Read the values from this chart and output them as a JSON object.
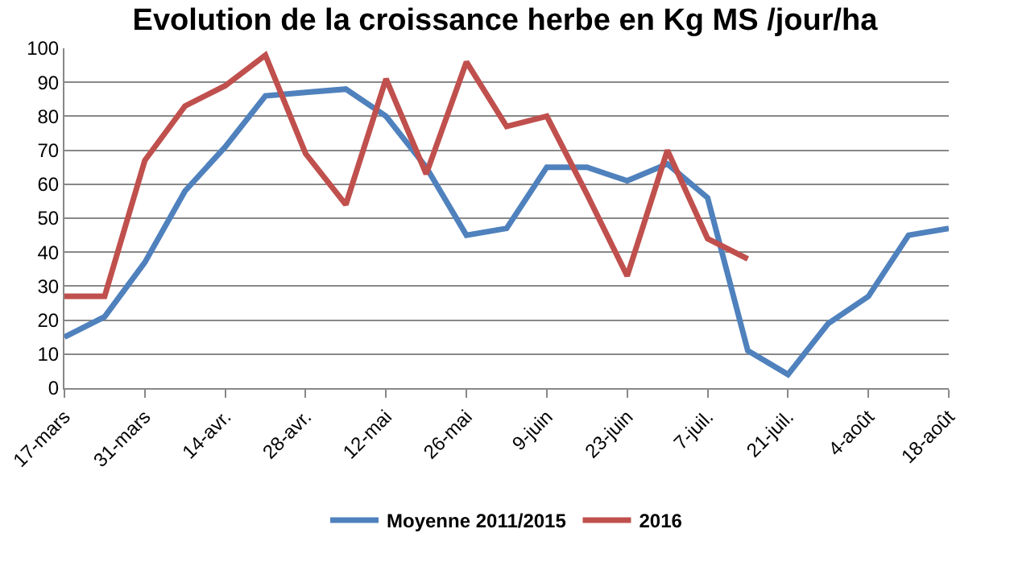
{
  "chart_data": {
    "type": "line",
    "title": "Evolution de la croissance herbe en Kg MS /jour/ha",
    "categories": [
      "17-mars",
      null,
      "31-mars",
      null,
      "14-avr.",
      null,
      "28-avr.",
      null,
      "12-mai",
      null,
      "26-mai",
      null,
      "9-juin",
      null,
      "23-juin",
      null,
      "7-juil.",
      null,
      "21-juil.",
      null,
      "4-août",
      null,
      "18-août"
    ],
    "series": [
      {
        "name": "Moyenne 2011/2015",
        "color": "#4f81bd",
        "values": [
          15,
          21,
          37,
          58,
          71,
          86,
          87,
          88,
          80,
          65,
          45,
          47,
          65,
          65,
          61,
          66,
          56,
          11,
          4,
          19,
          27,
          45,
          47
        ]
      },
      {
        "name": "2016",
        "color": "#c0504d",
        "values": [
          27,
          27,
          67,
          83,
          89,
          98,
          69,
          54,
          91,
          63,
          96,
          77,
          80,
          57,
          33,
          70,
          44,
          38,
          null,
          null,
          null,
          null,
          null
        ]
      }
    ],
    "ylim": [
      0,
      100
    ],
    "yticks": [
      0,
      10,
      20,
      30,
      40,
      50,
      60,
      70,
      80,
      90,
      100
    ],
    "grid": "y",
    "legend": "bottom",
    "marker": "none",
    "line_style": "solid"
  }
}
